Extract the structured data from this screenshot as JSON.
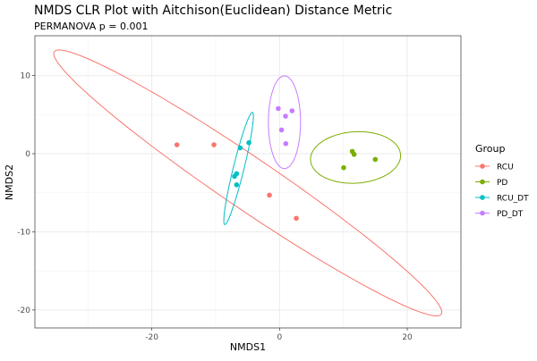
{
  "chart_data": {
    "type": "scatter",
    "title": "NMDS CLR Plot with Aitchison(Euclidean) Distance Metric",
    "subtitle": "PERMANOVA p = 0.001",
    "xlabel": "NMDS1",
    "ylabel": "NMDS2",
    "xlim": [
      -38.3,
      28.4
    ],
    "ylim": [
      -22.3,
      15.1
    ],
    "x_ticks": [
      -20,
      0,
      20
    ],
    "x_tick_labels": [
      "-20",
      "0",
      "20"
    ],
    "y_ticks": [
      -20,
      -10,
      0,
      10
    ],
    "y_tick_labels": [
      "-20",
      "-10",
      "0",
      "10"
    ],
    "x_minor": [
      -30,
      -10,
      10
    ],
    "y_minor": [
      -15,
      -5,
      5
    ],
    "grid": true,
    "legend": {
      "title": "Group",
      "position": "right"
    },
    "series": [
      {
        "name": "RCU",
        "color": "#F8766D",
        "points": [
          [
            -16.06,
            1.14
          ],
          [
            -10.27,
            1.14
          ],
          [
            -1.58,
            -5.3
          ],
          [
            2.62,
            -8.26
          ]
        ],
        "ellipse": {
          "center": [
            -4.97,
            -3.74
          ],
          "axis1": [
            30.3,
            -16.8
          ],
          "axis2": [
            -2.28,
            -2.74
          ]
        }
      },
      {
        "name": "PD",
        "color": "#7CAE00",
        "points": [
          [
            11.39,
            0.3
          ],
          [
            11.67,
            -0.08
          ],
          [
            14.99,
            -0.73
          ],
          [
            10.04,
            -1.79
          ]
        ],
        "ellipse": {
          "center": [
            11.9,
            -0.48
          ],
          "axis1": [
            7.05,
            0.3
          ],
          "axis2": [
            -0.13,
            3.29
          ]
        }
      },
      {
        "name": "RCU_DT",
        "color": "#00BFC4",
        "points": [
          [
            -4.8,
            1.41
          ],
          [
            -6.16,
            0.75
          ],
          [
            -6.72,
            -2.56
          ],
          [
            -7.05,
            -2.9
          ],
          [
            -6.72,
            -3.98
          ]
        ],
        "ellipse": {
          "center": [
            -6.41,
            -1.89
          ],
          "axis1": [
            2.17,
            7.18
          ],
          "axis2": [
            0.81,
            -0.16
          ]
        }
      },
      {
        "name": "PD_DT",
        "color": "#C77CFF",
        "points": [
          [
            -0.2,
            5.78
          ],
          [
            1.96,
            5.49
          ],
          [
            0.94,
            4.8
          ],
          [
            0.32,
            3.04
          ],
          [
            0.98,
            1.29
          ]
        ],
        "ellipse": {
          "center": [
            0.77,
            4.03
          ],
          "axis1": [
            0.0,
            5.93
          ],
          "axis2": [
            2.52,
            0.0
          ]
        }
      }
    ]
  }
}
